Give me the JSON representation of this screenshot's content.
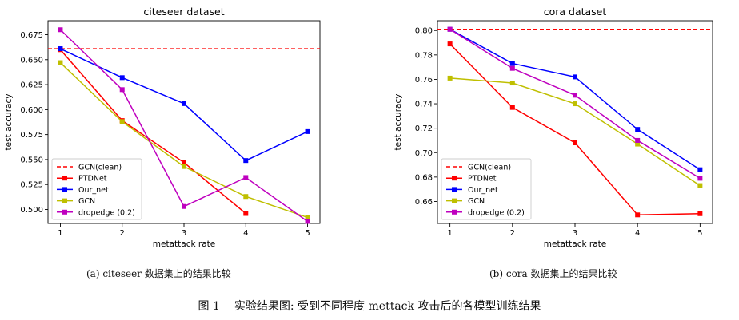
{
  "chart_data": [
    {
      "type": "line",
      "title": "citeseer dataset",
      "xlabel": "metattack rate",
      "ylabel": "test accuracy",
      "x": [
        1,
        2,
        3,
        4,
        5
      ],
      "xticks": [
        "1",
        "2",
        "3",
        "4",
        "5"
      ],
      "ylim": [
        0.486,
        0.689
      ],
      "yticks": [
        0.5,
        0.525,
        0.55,
        0.575,
        0.6,
        0.625,
        0.65,
        0.675
      ],
      "ytick_labels": [
        "0.500",
        "0.525",
        "0.550",
        "0.575",
        "0.600",
        "0.625",
        "0.650",
        "0.675"
      ],
      "grid": false,
      "legend": "lower-left",
      "reference": {
        "name": "GCN(clean)",
        "value": 0.661,
        "color": "#ff0000"
      },
      "series": [
        {
          "name": "PTDNet",
          "color": "#ff0000",
          "values": [
            0.66,
            0.589,
            0.547,
            0.496,
            null
          ]
        },
        {
          "name": "Our_net",
          "color": "#0000ff",
          "values": [
            0.661,
            0.632,
            0.606,
            0.549,
            0.578
          ]
        },
        {
          "name": "GCN",
          "color": "#bfbf00",
          "values": [
            0.647,
            0.588,
            0.543,
            0.513,
            0.492
          ]
        },
        {
          "name": "dropedge (0.2)",
          "color": "#bf00bf",
          "values": [
            0.68,
            0.62,
            0.503,
            0.532,
            0.488
          ]
        }
      ]
    },
    {
      "type": "line",
      "title": "cora dataset",
      "xlabel": "metattack rate",
      "ylabel": "test accuracy",
      "x": [
        1,
        2,
        3,
        4,
        5
      ],
      "xticks": [
        "1",
        "2",
        "3",
        "4",
        "5"
      ],
      "ylim": [
        0.642,
        0.808
      ],
      "yticks": [
        0.66,
        0.68,
        0.7,
        0.72,
        0.74,
        0.76,
        0.78,
        0.8
      ],
      "ytick_labels": [
        "0.66",
        "0.68",
        "0.70",
        "0.72",
        "0.74",
        "0.76",
        "0.78",
        "0.80"
      ],
      "grid": false,
      "legend": "lower-left",
      "reference": {
        "name": "GCN(clean)",
        "value": 0.801,
        "color": "#ff0000"
      },
      "series": [
        {
          "name": "PTDNet",
          "color": "#ff0000",
          "values": [
            0.789,
            0.737,
            0.708,
            0.649,
            0.65
          ]
        },
        {
          "name": "Our_net",
          "color": "#0000ff",
          "values": [
            0.801,
            0.773,
            0.762,
            0.719,
            0.686
          ]
        },
        {
          "name": "GCN",
          "color": "#bfbf00",
          "values": [
            0.761,
            0.757,
            0.74,
            0.707,
            0.673
          ]
        },
        {
          "name": "dropedge (0.2)",
          "color": "#bf00bf",
          "values": [
            0.801,
            0.769,
            0.747,
            0.71,
            0.679
          ]
        }
      ]
    }
  ],
  "captions": {
    "sub_a": "(a)  citeseer 数据集上的结果比较",
    "sub_b": "(b)  cora 数据集上的结果比较",
    "figure_label": "图 1",
    "figure_text": "实验结果图: 受到不同程度 mettack 攻击后的各模型训练结果"
  }
}
